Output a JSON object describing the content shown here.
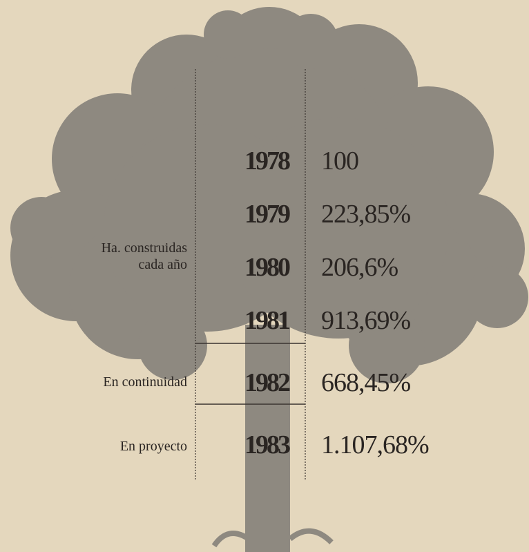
{
  "table": {
    "groups": [
      {
        "label": [
          "Ha. construidas",
          "cada año"
        ]
      },
      {
        "label": [
          "En continuidad"
        ]
      },
      {
        "label": [
          "En proyecto"
        ]
      }
    ],
    "rows": [
      [
        "1978",
        "100"
      ],
      [
        "1979",
        "223,85%"
      ],
      [
        "1980",
        "206,6%"
      ],
      [
        "1981",
        "913,69%"
      ],
      [
        "1982",
        "668,45%"
      ],
      [
        "1983",
        "1.107,68%"
      ]
    ]
  }
}
